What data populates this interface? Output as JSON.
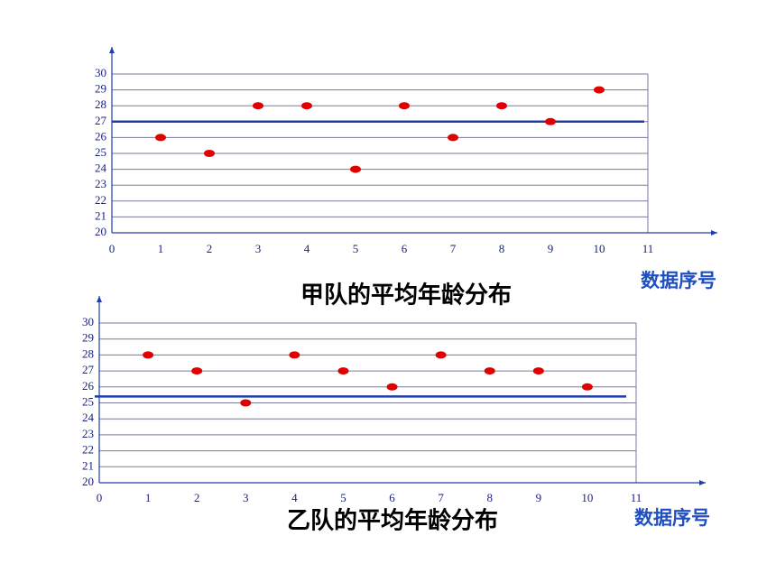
{
  "chart_data": [
    {
      "type": "scatter",
      "title": "甲队的平均年龄分布",
      "x_label": "数据序号",
      "x": [
        1,
        2,
        3,
        4,
        5,
        6,
        7,
        8,
        9,
        10
      ],
      "values": [
        26,
        25,
        28,
        28,
        24,
        28,
        26,
        28,
        27,
        29
      ],
      "color": "#e00000",
      "reference_line": 27,
      "reference_color": "#1f3fa8",
      "xlim": [
        0,
        11
      ],
      "xticks": [
        0,
        1,
        2,
        3,
        4,
        5,
        6,
        7,
        8,
        9,
        10,
        11
      ],
      "ylim": [
        20,
        30
      ],
      "yticks": [
        20,
        21,
        22,
        23,
        24,
        25,
        26,
        27,
        28,
        29,
        30
      ],
      "grid": true
    },
    {
      "type": "scatter",
      "title": "乙队的平均年龄分布",
      "x_label": "数据序号",
      "x": [
        1,
        2,
        3,
        4,
        5,
        6,
        7,
        8,
        9,
        10
      ],
      "values": [
        28,
        27,
        25,
        28,
        27,
        26,
        28,
        27,
        27,
        26
      ],
      "color": "#e00000",
      "reference_line": 25.4,
      "reference_color": "#1f3fa8",
      "xlim": [
        0,
        11
      ],
      "xticks": [
        0,
        1,
        2,
        3,
        4,
        5,
        6,
        7,
        8,
        9,
        10,
        11
      ],
      "ylim": [
        20,
        30
      ],
      "yticks": [
        20,
        21,
        22,
        23,
        24,
        25,
        26,
        27,
        28,
        29,
        30
      ],
      "grid": true
    }
  ]
}
